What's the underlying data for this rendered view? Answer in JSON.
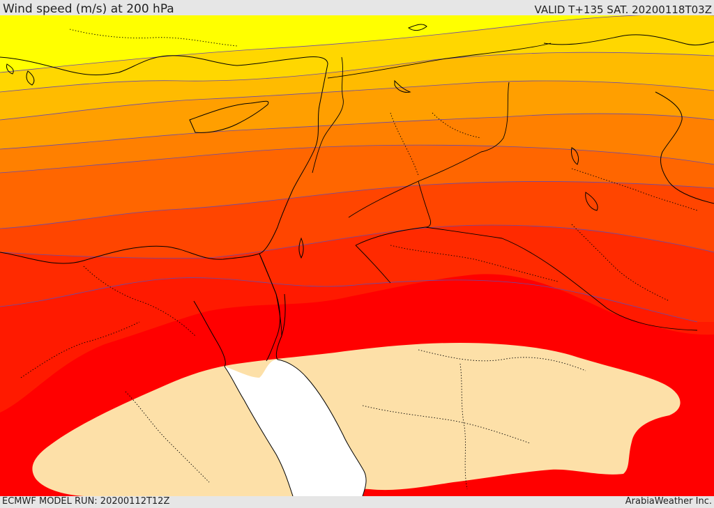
{
  "header": {
    "title": "Wind speed (m/s) at 200 hPa",
    "valid": "VALID T+135 SAT. 20200118T03Z"
  },
  "footer": {
    "model_run": "ECMWF MODEL RUN: 20200112T12Z",
    "credit": "ArabiaWeather Inc."
  },
  "map": {
    "field": "wind speed 200 hPa",
    "colors": {
      "band_1": "#ffff00",
      "band_2": "#ffd700",
      "band_3": "#ffbb00",
      "band_4": "#ff9f00",
      "band_5": "#ff8000",
      "band_6": "#ff6600",
      "band_7": "#ff4500",
      "band_8": "#ff2a00",
      "band_9": "#ff0000",
      "jet_core": "#fde0a8",
      "sea_gap": "#ffffff",
      "contour_line": "#6a4aa8",
      "coastline": "#000000"
    }
  }
}
